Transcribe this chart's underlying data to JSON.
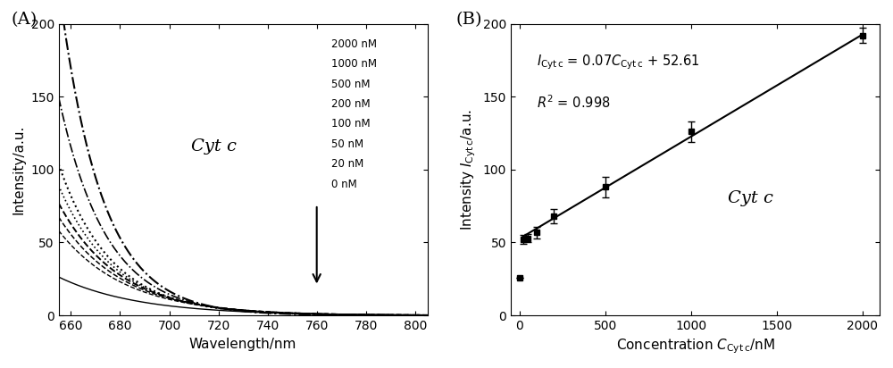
{
  "panel_A": {
    "label": "(A)",
    "xlabel": "Wavelength/nm",
    "ylabel": "Intensity/a.u.",
    "xlim": [
      655,
      805
    ],
    "ylim": [
      0,
      200
    ],
    "xticks": [
      660,
      680,
      700,
      720,
      740,
      760,
      780,
      800
    ],
    "yticks": [
      0,
      50,
      100,
      150,
      200
    ],
    "text_label": "Cyt c",
    "legend_labels": [
      "2000 nM",
      "1000 nM",
      "500 nM",
      "200 nM",
      "100 nM",
      "50 nM",
      "20 nM",
      "0 nM"
    ],
    "peak_intensities": [
      190,
      128,
      90,
      78,
      68,
      60,
      52,
      24
    ],
    "decays": [
      0.058,
      0.052,
      0.047,
      0.044,
      0.041,
      0.039,
      0.037,
      0.031
    ],
    "linestyles": [
      "-.",
      "-.",
      ":",
      ":",
      "--",
      "--",
      "--",
      "-"
    ],
    "linewidths": [
      1.5,
      1.2,
      1.5,
      1.2,
      1.4,
      1.1,
      1.0,
      1.0
    ]
  },
  "panel_B": {
    "label": "(B)",
    "xlabel": "Concentration $C_{\\mathrm{Cyt\\,c}}$/nM",
    "ylabel": "Intensity $I_{\\mathrm{Cyt\\,c}}$/a.u.",
    "xlim": [
      -50,
      2100
    ],
    "ylim": [
      0,
      200
    ],
    "xticks": [
      0,
      500,
      1000,
      1500,
      2000
    ],
    "yticks": [
      0,
      50,
      100,
      150,
      200
    ],
    "text_label": "Cyt c",
    "slope": 0.07,
    "intercept": 52.61,
    "data_x": [
      0,
      20,
      50,
      100,
      200,
      500,
      1000,
      2000
    ],
    "data_y": [
      26,
      52,
      53,
      57,
      68,
      88,
      126,
      192
    ],
    "data_yerr": [
      0,
      3,
      3,
      4,
      5,
      7,
      7,
      5
    ],
    "fit_x_start": 20,
    "fit_x_end": 2000
  }
}
